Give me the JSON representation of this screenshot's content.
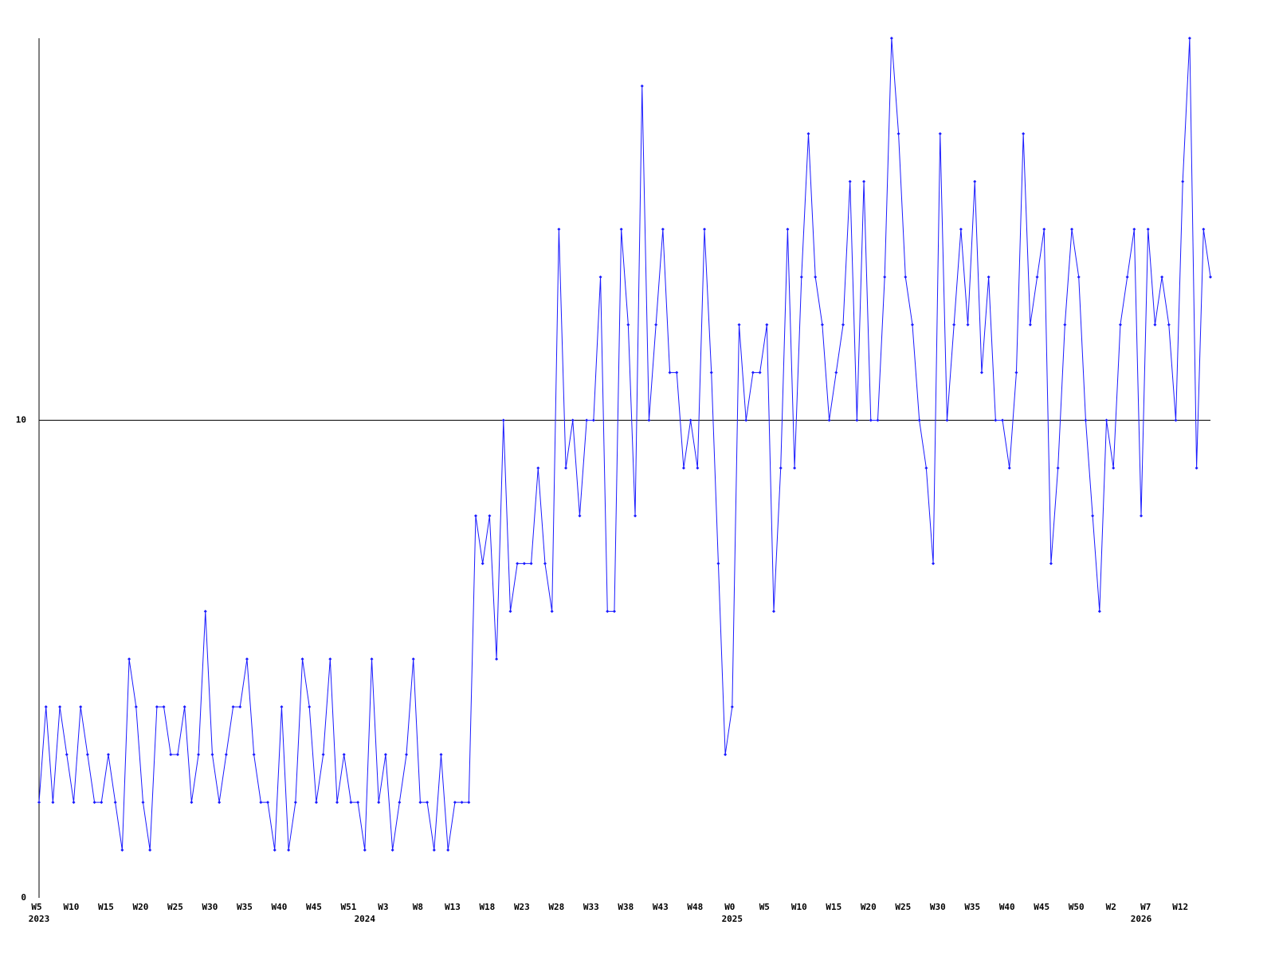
{
  "chart_data": {
    "type": "line",
    "categories": [
      "W5",
      null,
      null,
      null,
      null,
      "W10",
      null,
      null,
      null,
      null,
      "W15",
      null,
      null,
      null,
      null,
      "W20",
      null,
      null,
      null,
      null,
      "W25",
      null,
      null,
      null,
      null,
      "W30",
      null,
      null,
      null,
      null,
      "W35",
      null,
      null,
      null,
      null,
      "W40",
      null,
      null,
      null,
      null,
      "W45",
      null,
      null,
      null,
      null,
      "W51",
      null,
      null,
      null,
      null,
      "W3",
      null,
      null,
      null,
      null,
      "W8",
      null,
      null,
      null,
      null,
      "W13",
      null,
      null,
      null,
      null,
      "W18",
      null,
      null,
      null,
      null,
      "W23",
      null,
      null,
      null,
      null,
      "W28",
      null,
      null,
      null,
      null,
      "W33",
      null,
      null,
      null,
      null,
      "W38",
      null,
      null,
      null,
      null,
      "W43",
      null,
      null,
      null,
      null,
      "W48",
      null,
      null,
      null,
      null,
      "W0",
      null,
      null,
      null,
      null,
      "W5",
      null,
      null,
      null,
      null,
      "W10",
      null,
      null,
      null,
      null,
      "W15",
      null,
      null,
      null,
      null,
      "W20",
      null,
      null,
      null,
      null,
      "W25",
      null,
      null,
      null,
      null,
      "W30",
      null,
      null,
      null,
      null,
      "W35",
      null,
      null,
      null,
      null,
      "W40",
      null,
      null,
      null,
      null,
      "W45",
      null,
      null,
      null,
      null,
      "W50",
      null,
      null,
      null,
      null,
      "W2",
      null,
      null,
      null,
      null,
      "W7",
      null,
      null,
      null,
      null,
      "W12",
      null,
      null,
      null,
      null
    ],
    "year_labels": [
      "2023",
      null,
      null,
      null,
      null,
      null,
      null,
      null,
      null,
      null,
      null,
      null,
      null,
      null,
      null,
      null,
      null,
      null,
      null,
      null,
      null,
      null,
      null,
      null,
      null,
      null,
      null,
      null,
      null,
      null,
      null,
      null,
      null,
      null,
      null,
      null,
      null,
      null,
      null,
      null,
      null,
      null,
      null,
      null,
      null,
      null,
      null,
      "2024",
      null,
      null,
      null,
      null,
      null,
      null,
      null,
      null,
      null,
      null,
      null,
      null,
      null,
      null,
      null,
      null,
      null,
      null,
      null,
      null,
      null,
      null,
      null,
      null,
      null,
      null,
      null,
      null,
      null,
      null,
      null,
      null,
      null,
      null,
      null,
      null,
      null,
      null,
      null,
      null,
      null,
      null,
      null,
      null,
      null,
      null,
      null,
      null,
      null,
      null,
      null,
      null,
      "2025",
      null,
      null,
      null,
      null,
      null,
      null,
      null,
      null,
      null,
      null,
      null,
      null,
      null,
      null,
      null,
      null,
      null,
      null,
      null,
      null,
      null,
      null,
      null,
      null,
      null,
      null,
      null,
      null,
      null,
      null,
      null,
      null,
      null,
      null,
      null,
      null,
      null,
      null,
      null,
      null,
      null,
      null,
      null,
      null,
      null,
      null,
      null,
      null,
      null,
      null,
      null,
      null,
      null,
      null,
      null,
      null,
      null,
      null,
      "2026",
      null,
      null,
      null,
      null,
      null,
      null,
      null,
      null,
      null,
      null,
      null,
      null,
      null,
      null,
      null,
      null
    ],
    "values": [
      2,
      4,
      2,
      4,
      3,
      2,
      4,
      3,
      2,
      2,
      3,
      2,
      1,
      5,
      4,
      2,
      1,
      4,
      4,
      3,
      3,
      4,
      2,
      3,
      6,
      3,
      2,
      3,
      4,
      4,
      5,
      3,
      2,
      2,
      1,
      4,
      1,
      2,
      5,
      4,
      2,
      3,
      5,
      2,
      3,
      2,
      2,
      1,
      5,
      2,
      3,
      1,
      2,
      3,
      5,
      2,
      2,
      1,
      3,
      1,
      2,
      2,
      2,
      8,
      7,
      8,
      5,
      10,
      6,
      7,
      7,
      7,
      9,
      7,
      6,
      14,
      9,
      10,
      8,
      10,
      10,
      13,
      6,
      6,
      14,
      12,
      8,
      17,
      10,
      12,
      14,
      11,
      11,
      9,
      10,
      9,
      14,
      11,
      7,
      3,
      4,
      12,
      10,
      11,
      11,
      12,
      6,
      9,
      14,
      9,
      13,
      16,
      13,
      12,
      10,
      11,
      12,
      15,
      10,
      15,
      10,
      10,
      13,
      18,
      16,
      13,
      12,
      10,
      9,
      7,
      16,
      10,
      12,
      14,
      12,
      15,
      11,
      13,
      10,
      10,
      9,
      11,
      16,
      12,
      13,
      14,
      7,
      9,
      12,
      14,
      13,
      10,
      8,
      6,
      10,
      9,
      12,
      13,
      14,
      8,
      14,
      12,
      13,
      12,
      10,
      15,
      18,
      9,
      14,
      13
    ],
    "color": "#1a1aff",
    "ylim": [
      0,
      18
    ],
    "yticks": [
      0,
      10
    ],
    "grid": true
  }
}
